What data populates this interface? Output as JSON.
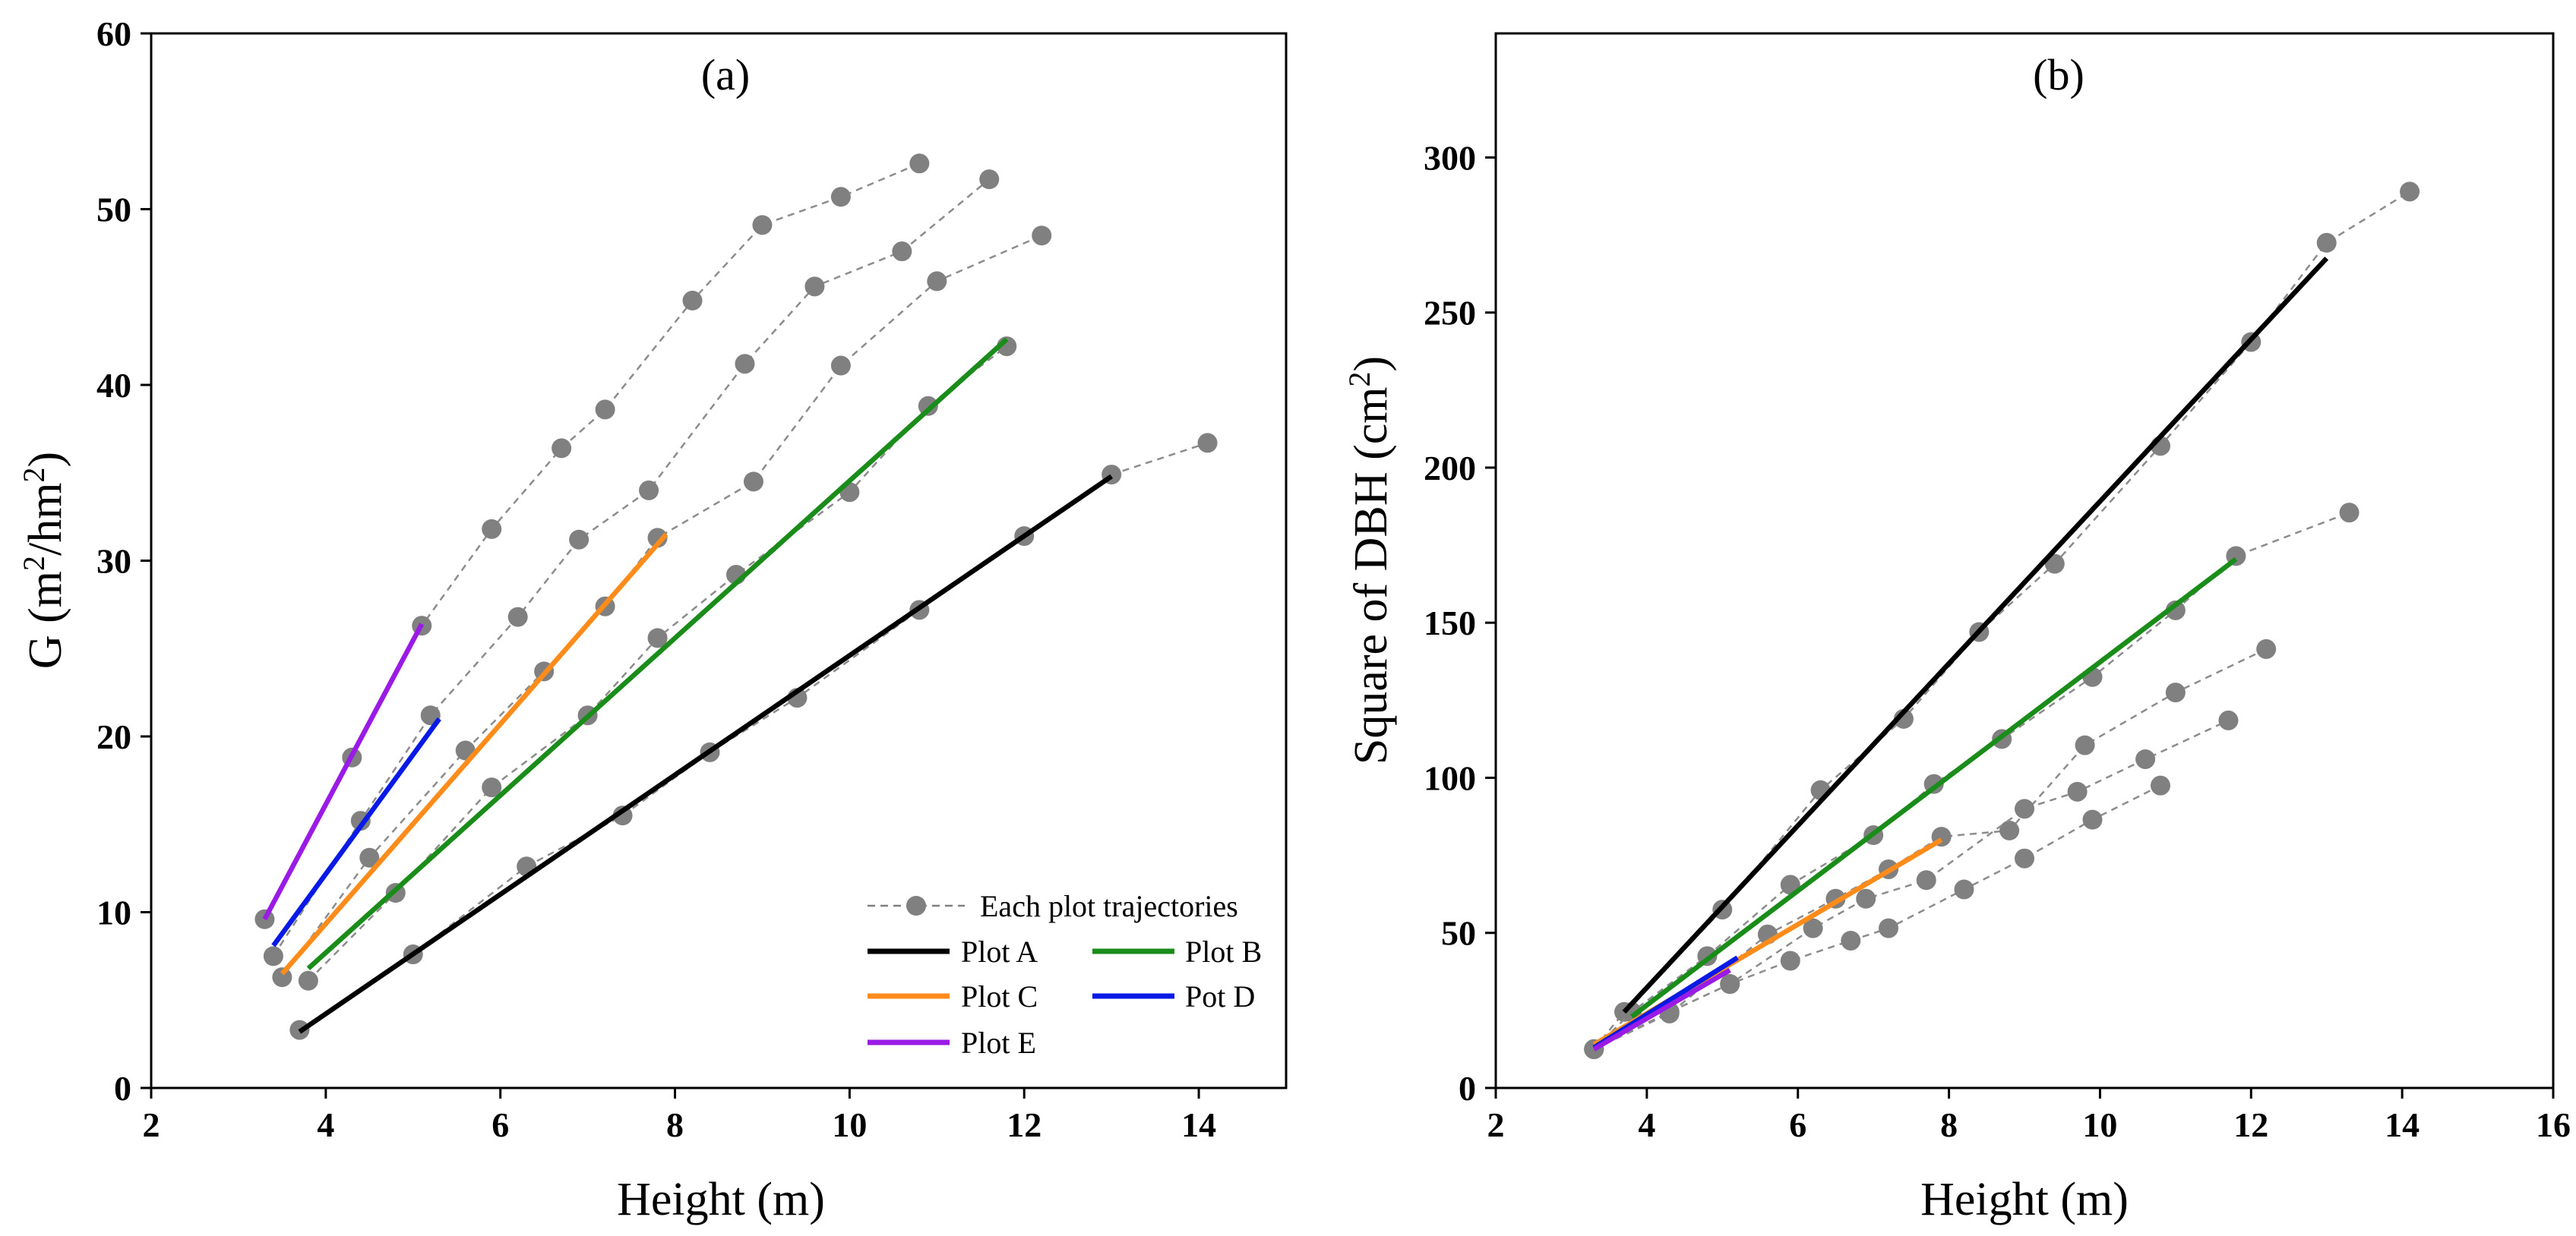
{
  "chart_data": [
    {
      "type": "line",
      "panel_label": "(a)",
      "title": "",
      "xlabel": "Height (m)",
      "ylabel": "G (m²/hm²)",
      "xlim": [
        2,
        15
      ],
      "ylim": [
        0,
        60
      ],
      "x_ticks": [
        2,
        4,
        6,
        8,
        10,
        12,
        14
      ],
      "y_ticks": [
        0,
        10,
        20,
        30,
        40,
        50,
        60
      ],
      "legend": {
        "position": "bottom-right",
        "entries": [
          "Each plot trajectories",
          "Plot A",
          "Plot B",
          "Plot C",
          "Pot D",
          "Plot E"
        ]
      },
      "trajectories": [
        {
          "name": "trajectory-1",
          "x": [
            3.3,
            4.3,
            5.1,
            5.9,
            6.7,
            7.2,
            8.2,
            9.0,
            9.9,
            10.8
          ],
          "y": [
            9.6,
            18.8,
            26.3,
            31.8,
            36.4,
            38.6,
            44.8,
            49.1,
            50.7,
            52.6
          ]
        },
        {
          "name": "trajectory-2",
          "x": [
            3.4,
            4.4,
            5.2,
            6.2,
            6.9,
            7.7,
            8.8,
            9.6,
            10.6,
            11.6
          ],
          "y": [
            7.5,
            15.2,
            21.2,
            26.8,
            31.2,
            34.0,
            41.2,
            45.6,
            47.6,
            51.7
          ]
        },
        {
          "name": "trajectory-3",
          "x": [
            3.5,
            4.5,
            5.6,
            6.5,
            7.2,
            7.8,
            8.9,
            9.9,
            11.0,
            12.2
          ],
          "y": [
            6.3,
            13.1,
            19.2,
            23.7,
            27.4,
            31.3,
            34.5,
            41.1,
            45.9,
            48.5
          ]
        },
        {
          "name": "trajectory-4",
          "x": [
            3.8,
            4.8,
            5.9,
            7.0,
            7.8,
            8.7,
            10.0,
            10.9,
            11.8
          ],
          "y": [
            6.1,
            11.1,
            17.1,
            21.2,
            25.6,
            29.2,
            33.9,
            38.8,
            42.2
          ]
        },
        {
          "name": "trajectory-5",
          "x": [
            3.7,
            5.0,
            6.3,
            7.4,
            8.4,
            9.4,
            10.8,
            12.0,
            13.0,
            14.1
          ],
          "y": [
            3.3,
            7.6,
            12.6,
            15.5,
            19.1,
            22.2,
            27.2,
            31.4,
            34.9,
            36.7
          ]
        }
      ],
      "series": [
        {
          "name": "Plot A",
          "color": "#000000",
          "x": [
            3.7,
            13.0
          ],
          "y": [
            3.2,
            34.8
          ]
        },
        {
          "name": "Plot B",
          "color": "#1a8c1a",
          "x": [
            3.8,
            11.8
          ],
          "y": [
            6.8,
            42.6
          ]
        },
        {
          "name": "Plot C",
          "color": "#ff8c1a",
          "x": [
            3.5,
            7.9
          ],
          "y": [
            6.5,
            31.5
          ]
        },
        {
          "name": "Pot D",
          "color": "#0a1ae6",
          "x": [
            3.4,
            5.3
          ],
          "y": [
            8.1,
            21.0
          ]
        },
        {
          "name": "Plot E",
          "color": "#9a1ae6",
          "x": [
            3.3,
            5.1
          ],
          "y": [
            9.6,
            26.4
          ]
        }
      ]
    },
    {
      "type": "line",
      "panel_label": "(b)",
      "title": "",
      "xlabel": "Height (m)",
      "ylabel": "Square of DBH (cm²)",
      "xlim": [
        2,
        16
      ],
      "ylim": [
        0,
        340
      ],
      "x_ticks": [
        2,
        4,
        6,
        8,
        10,
        12,
        14,
        16
      ],
      "y_ticks": [
        0,
        50,
        100,
        150,
        200,
        250,
        300
      ],
      "trajectories": [
        {
          "name": "trajectory-1",
          "x": [
            3.3,
            3.7,
            5.0,
            6.3,
            7.4,
            8.4,
            9.4,
            10.8,
            12.0,
            13.0,
            14.1
          ],
          "y": [
            12.5,
            24.5,
            57.5,
            96.0,
            119.0,
            147.0,
            169.0,
            207.0,
            240.5,
            272.5,
            289.0
          ]
        },
        {
          "name": "trajectory-2",
          "x": [
            3.3,
            3.8,
            4.8,
            5.9,
            7.0,
            7.8,
            8.7,
            9.9,
            11.0,
            11.8,
            13.3
          ],
          "y": [
            12.5,
            24.5,
            42.5,
            65.5,
            81.5,
            98.0,
            112.5,
            132.5,
            154.0,
            171.5,
            185.5
          ]
        },
        {
          "name": "trajectory-3",
          "x": [
            3.3,
            4.3,
            5.6,
            6.5,
            7.2,
            7.9,
            8.8,
            9.8,
            11.0,
            12.2
          ],
          "y": [
            12.5,
            24.0,
            49.5,
            61.0,
            70.5,
            81.0,
            83.0,
            110.5,
            127.5,
            141.5
          ]
        },
        {
          "name": "trajectory-4",
          "x": [
            3.3,
            4.3,
            5.1,
            6.2,
            6.9,
            7.7,
            9.0,
            9.7,
            10.6,
            11.7
          ],
          "y": [
            12.5,
            24.5,
            33.5,
            51.5,
            61.0,
            67.0,
            90.0,
            95.5,
            106.0,
            118.5
          ]
        },
        {
          "name": "trajectory-5",
          "x": [
            3.3,
            4.3,
            5.1,
            5.9,
            6.7,
            7.2,
            8.2,
            9.0,
            9.9,
            10.8
          ],
          "y": [
            12.5,
            24.5,
            33.5,
            41.0,
            47.5,
            51.5,
            64.0,
            74.0,
            86.5,
            97.5
          ]
        }
      ],
      "series": [
        {
          "name": "Plot A",
          "color": "#000000",
          "x": [
            3.7,
            13.0
          ],
          "y": [
            24.5,
            267.5
          ]
        },
        {
          "name": "Plot B",
          "color": "#1a8c1a",
          "x": [
            3.8,
            11.8
          ],
          "y": [
            23.0,
            170.5
          ]
        },
        {
          "name": "Plot C",
          "color": "#ff8c1a",
          "x": [
            3.3,
            7.9
          ],
          "y": [
            14.0,
            80.0
          ]
        },
        {
          "name": "Pot D",
          "color": "#0a1ae6",
          "x": [
            3.3,
            5.2
          ],
          "y": [
            13.0,
            42.0
          ]
        },
        {
          "name": "Plot E",
          "color": "#9a1ae6",
          "x": [
            3.3,
            5.1
          ],
          "y": [
            12.5,
            38.0
          ]
        }
      ]
    }
  ]
}
